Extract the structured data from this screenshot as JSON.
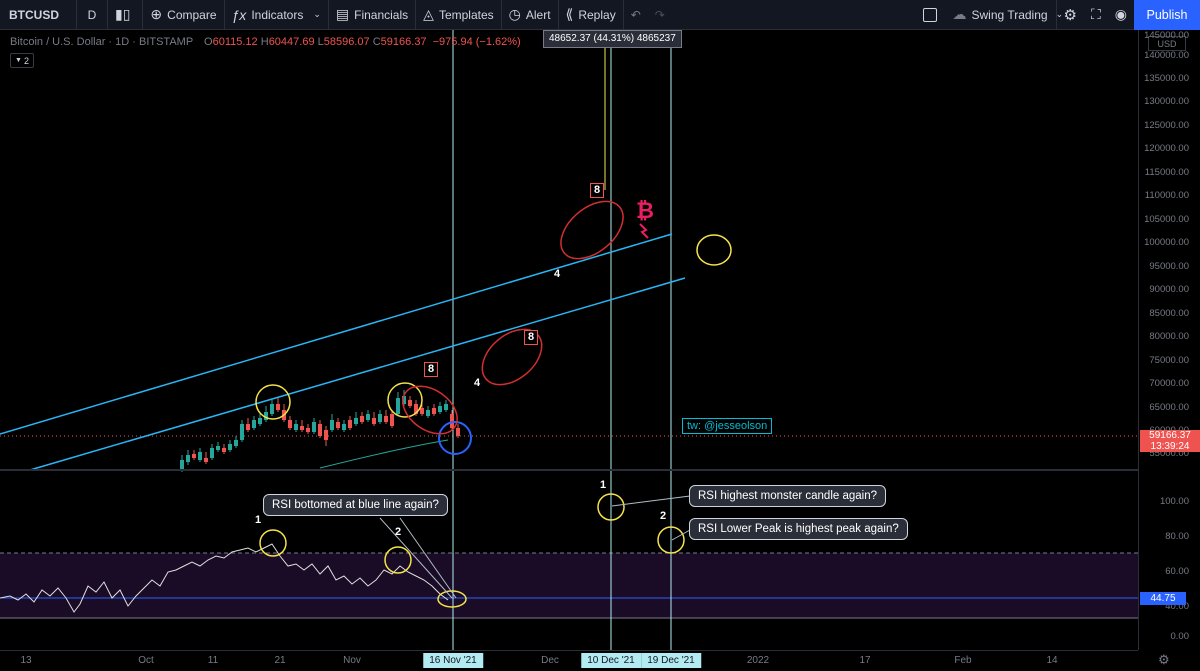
{
  "toolbar": {
    "symbol": "BTCUSD",
    "interval": "D",
    "compare": "Compare",
    "indicators": "Indicators",
    "financials": "Financials",
    "templates": "Templates",
    "alert": "Alert",
    "replay": "Replay",
    "layout_name": "Swing Trading",
    "publish": "Publish"
  },
  "legend": {
    "title": "Bitcoin / U.S. Dollar · 1D · BITSTAMP",
    "o_label": "O",
    "o": "60115.12",
    "h_label": "H",
    "h": "60447.69",
    "l_label": "L",
    "l": "58596.07",
    "c_label": "C",
    "c": "59166.37",
    "change": "−975.94 (−1.62%)",
    "collapse": "2"
  },
  "price_axis": {
    "currency": "USD",
    "labels": [
      "145000.00",
      "140000.00",
      "135000.00",
      "130000.00",
      "125000.00",
      "120000.00",
      "115000.00",
      "110000.00",
      "105000.00",
      "100000.00",
      "95000.00",
      "90000.00",
      "85000.00",
      "80000.00",
      "75000.00",
      "70000.00",
      "65000.00",
      "60000.00",
      "55000.00"
    ],
    "price_tag": "59166.37",
    "countdown": "13:39:24"
  },
  "rsi_axis": {
    "labels": [
      "100.00",
      "80.00",
      "60.00",
      "40.00",
      "0.00"
    ],
    "value": "44.75"
  },
  "time_axis": {
    "labels": [
      "13",
      "Oct",
      "11",
      "21",
      "Nov",
      "Dec",
      "2022",
      "17",
      "Feb",
      "14"
    ],
    "tags": [
      "16 Nov '21",
      "10 Dec '21",
      "19 Dec '21"
    ]
  },
  "annotations": {
    "measure": "48652.37 (44.31%) 4865237",
    "twitter": "tw: @jesseolson",
    "callout_rsi_bottom": "RSI bottomed at blue line again?",
    "callout_monster": "RSI highest monster candle again?",
    "callout_lower_peak": "RSI Lower Peak is highest peak again?",
    "wave_labels": [
      "1",
      "2",
      "1",
      "2",
      "4",
      "4",
      "8",
      "8",
      "8"
    ]
  },
  "colors": {
    "background": "#000000",
    "toolbar": "#131722",
    "bull": "#26a69a",
    "bear": "#ef5350",
    "channel": "#29b6f6",
    "circle_yellow": "#f5e34b",
    "ellipse_red": "#d32f2f",
    "rsi_zone": "#1a0b26",
    "publish": "#2962ff"
  },
  "icons": [
    "chart-bars-icon",
    "plus-circle-icon",
    "fx-icon",
    "financials-icon",
    "templates-icon",
    "alarm-clock-icon",
    "replay-icon",
    "undo-icon",
    "redo-icon",
    "square-icon",
    "cloud-icon",
    "gear-icon",
    "fullscreen-icon",
    "camera-icon",
    "bitcoin-logo-icon"
  ]
}
